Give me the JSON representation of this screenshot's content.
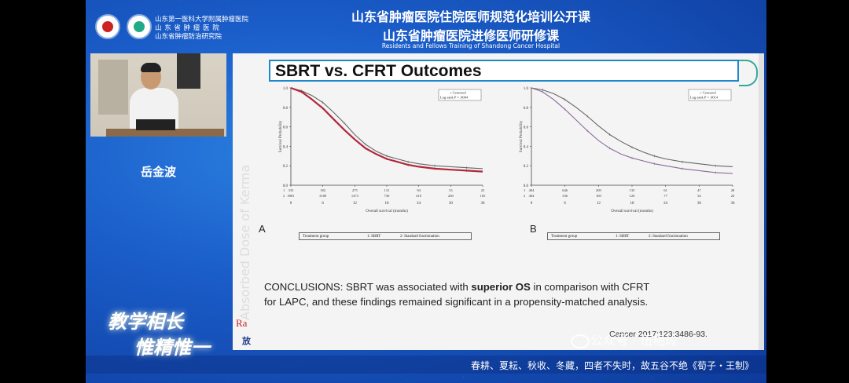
{
  "header": {
    "hospital_line1": "山东第一医科大学附属肿瘤医院",
    "hospital_line2": "山 东 省 肿 瘤 医 院",
    "hospital_line3": "山东省肿瘤防治研究院",
    "title_line1": "山东省肿瘤医院住院医师规范化培训公开课",
    "title_line2": "山东省肿瘤医院进修医师研修课",
    "title_en": "Residents and Fellows Training of Shandong Cancer Hospital"
  },
  "speaker": {
    "name": "岳金波"
  },
  "slogan": {
    "line1": "教学相长",
    "line2": "惟精惟一"
  },
  "slide": {
    "title": "SBRT vs. CFRT Outcomes",
    "watermark": "Absorbed Dose of Kerma",
    "conclusions_prefix": "CONCLUSIONS: SBRT was associated with ",
    "conclusions_bold": "superior OS",
    "conclusions_mid": " in comparison with  CFRT",
    "conclusions_line2": "for LAPC, and these findings remained significant in a propensity-matched analysis.",
    "citation": "Cancer 2017;123:3486-93.",
    "corner_text1": "Ra",
    "corner_text2": "放"
  },
  "ticker": {
    "text": "春耕、夏耘、秋收、冬藏，四者不失时，故五谷不绝《荀子・王制》"
  },
  "watermark": {
    "text": "公众号 · 伍艳玲"
  },
  "chart_data": [
    {
      "type": "line",
      "panel": "A",
      "xlabel": "Overall survival (months)",
      "ylabel": "Survival Probability",
      "x_ticks": [
        0,
        6,
        12,
        18,
        24,
        30,
        36
      ],
      "y_ticks": [
        "0.0",
        "0.2",
        "0.4",
        "0.6",
        "0.8",
        "1.0"
      ],
      "xlim": [
        0,
        36
      ],
      "ylim": [
        0,
        1
      ],
      "annotation_line1": "+ Censored",
      "annotation_line2": "Log-rank P = .0004",
      "risk_row1_label": "1",
      "risk_row2_label": "2",
      "risk_row1": [
        "335",
        "182",
        "275",
        "131",
        "94",
        "53",
        "25"
      ],
      "risk_row2": [
        "4981",
        "3180",
        "1473",
        "730",
        "410",
        "260",
        "165"
      ],
      "legend_title": "Treatment group",
      "legend_1": "1: SBRT",
      "legend_2": "2: Standard fractionation",
      "series": [
        {
          "name": "1: SBRT",
          "color": "#666666",
          "x": [
            0,
            2,
            4,
            6,
            8,
            10,
            12,
            14,
            16,
            18,
            20,
            22,
            24,
            27,
            30,
            33,
            36
          ],
          "y": [
            1.0,
            0.97,
            0.92,
            0.85,
            0.75,
            0.64,
            0.52,
            0.42,
            0.35,
            0.3,
            0.27,
            0.24,
            0.22,
            0.2,
            0.19,
            0.18,
            0.17
          ]
        },
        {
          "name": "2: Standard fractionation",
          "color": "#b0283c",
          "x": [
            0,
            2,
            4,
            6,
            8,
            10,
            12,
            14,
            16,
            18,
            20,
            22,
            24,
            27,
            30,
            33,
            36
          ],
          "y": [
            1.0,
            0.96,
            0.88,
            0.79,
            0.68,
            0.57,
            0.47,
            0.38,
            0.32,
            0.27,
            0.24,
            0.21,
            0.19,
            0.17,
            0.16,
            0.15,
            0.14
          ]
        }
      ]
    },
    {
      "type": "line",
      "panel": "B",
      "xlabel": "Overall survival (months)",
      "ylabel": "Survival Probability",
      "x_ticks": [
        0,
        6,
        12,
        18,
        24,
        30,
        36
      ],
      "y_ticks": [
        "0.0",
        "0.2",
        "0.4",
        "0.6",
        "0.8",
        "1.0"
      ],
      "xlim": [
        0,
        36
      ],
      "ylim": [
        0,
        1
      ],
      "annotation_line1": "+ Censored",
      "annotation_line2": "Log-rank P = .0014",
      "risk_row1_label": "1",
      "risk_row2_label": "2",
      "risk_row1": [
        "404",
        "646",
        "209",
        "135",
        "61",
        "47",
        "28"
      ],
      "risk_row2": [
        "404",
        "336",
        "169",
        "120",
        "77",
        "34",
        "20"
      ],
      "legend_title": "Treatment group",
      "legend_1": "1: SBRT",
      "legend_2": "2: Standard fractionation",
      "series": [
        {
          "name": "1: SBRT",
          "color": "#666666",
          "x": [
            0,
            2,
            4,
            6,
            8,
            10,
            12,
            14,
            16,
            18,
            20,
            22,
            24,
            27,
            30,
            33,
            36
          ],
          "y": [
            1.0,
            0.98,
            0.94,
            0.88,
            0.8,
            0.71,
            0.61,
            0.52,
            0.45,
            0.39,
            0.34,
            0.3,
            0.27,
            0.24,
            0.22,
            0.2,
            0.19
          ]
        },
        {
          "name": "2: Standard fractionation",
          "color": "#8a6a9a",
          "x": [
            0,
            2,
            4,
            6,
            8,
            10,
            12,
            14,
            16,
            18,
            20,
            22,
            24,
            27,
            30,
            33,
            36
          ],
          "y": [
            1.0,
            0.96,
            0.88,
            0.78,
            0.67,
            0.56,
            0.46,
            0.38,
            0.32,
            0.28,
            0.25,
            0.22,
            0.2,
            0.17,
            0.15,
            0.13,
            0.12
          ]
        }
      ]
    }
  ]
}
